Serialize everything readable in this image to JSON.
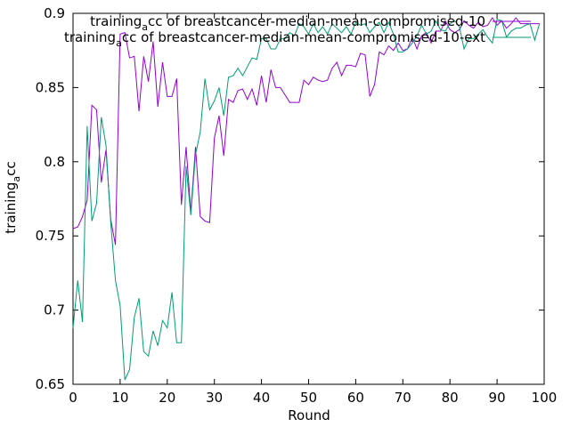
{
  "chart_data": {
    "type": "line",
    "xlabel": "Round",
    "ylabel": {
      "main": "training",
      "sub": "a",
      "rest": "cc"
    },
    "xlim": [
      0,
      100
    ],
    "ylim": [
      0.65,
      0.9
    ],
    "x_ticks": [
      "0",
      "10",
      "20",
      "30",
      "40",
      "50",
      "60",
      "70",
      "80",
      "90",
      "100"
    ],
    "y_ticks": [
      "0.65",
      "0.7",
      "0.75",
      "0.8",
      "0.85",
      "0.9"
    ],
    "grid": false,
    "legend_position": "top-right",
    "series": [
      {
        "name": {
          "main": "training",
          "sub": "a",
          "rest": "cc of breastcancer-median-mean-compromised-10"
        },
        "color": "#9400d3",
        "x": [
          0,
          1,
          2,
          3,
          4,
          5,
          6,
          7,
          8,
          9,
          10,
          11,
          12,
          13,
          14,
          15,
          16,
          17,
          18,
          19,
          20,
          21,
          22,
          23,
          24,
          25,
          26,
          27,
          28,
          29,
          30,
          31,
          32,
          33,
          34,
          35,
          36,
          37,
          38,
          39,
          40,
          41,
          42,
          43,
          44,
          45,
          46,
          47,
          48,
          49,
          50,
          51,
          52,
          53,
          54,
          55,
          56,
          57,
          58,
          59,
          60,
          61,
          62,
          63,
          64,
          65,
          66,
          67,
          68,
          69,
          70,
          71,
          72,
          73,
          74,
          75,
          76,
          77,
          78,
          79,
          80,
          81,
          82,
          83,
          84,
          85,
          86,
          87,
          88,
          89,
          90,
          91,
          92,
          93,
          94,
          95,
          96,
          97,
          98,
          99
        ],
        "values": [
          0.755,
          0.756,
          0.763,
          0.774,
          0.838,
          0.835,
          0.786,
          0.808,
          0.761,
          0.744,
          0.886,
          0.887,
          0.87,
          0.871,
          0.834,
          0.871,
          0.854,
          0.881,
          0.837,
          0.867,
          0.844,
          0.844,
          0.856,
          0.771,
          0.81,
          0.766,
          0.81,
          0.763,
          0.76,
          0.759,
          0.816,
          0.831,
          0.804,
          0.842,
          0.84,
          0.848,
          0.849,
          0.842,
          0.849,
          0.838,
          0.858,
          0.84,
          0.862,
          0.85,
          0.85,
          0.845,
          0.84,
          0.84,
          0.84,
          0.855,
          0.852,
          0.857,
          0.855,
          0.854,
          0.855,
          0.863,
          0.867,
          0.858,
          0.865,
          0.865,
          0.864,
          0.873,
          0.872,
          0.844,
          0.852,
          0.874,
          0.872,
          0.878,
          0.875,
          0.88,
          0.875,
          0.876,
          0.884,
          0.876,
          0.885,
          0.887,
          0.88,
          0.888,
          0.888,
          0.895,
          0.889,
          0.887,
          0.889,
          0.895,
          0.892,
          0.89,
          0.894,
          0.891,
          0.892,
          0.897,
          0.892,
          0.895,
          0.89,
          0.893,
          0.897,
          0.893,
          0.893,
          0.893,
          0.893,
          0.893
        ]
      },
      {
        "name": {
          "main": "training",
          "sub": "a",
          "rest": "cc of breastcancer-median-mean-compromised-10-ext"
        },
        "color": "#009e73",
        "x": [
          0,
          1,
          2,
          3,
          4,
          5,
          6,
          7,
          8,
          9,
          10,
          11,
          12,
          13,
          14,
          15,
          16,
          17,
          18,
          19,
          20,
          21,
          22,
          23,
          24,
          25,
          26,
          27,
          28,
          29,
          30,
          31,
          32,
          33,
          34,
          35,
          36,
          37,
          38,
          39,
          40,
          41,
          42,
          43,
          44,
          45,
          46,
          47,
          48,
          49,
          50,
          51,
          52,
          53,
          54,
          55,
          56,
          57,
          58,
          59,
          60,
          61,
          62,
          63,
          64,
          65,
          66,
          67,
          68,
          69,
          70,
          71,
          72,
          73,
          74,
          75,
          76,
          77,
          78,
          79,
          80,
          81,
          82,
          83,
          84,
          85,
          86,
          87,
          88,
          89,
          90,
          91,
          92,
          93,
          94,
          95,
          96,
          97,
          98,
          99
        ],
        "values": [
          0.688,
          0.72,
          0.692,
          0.824,
          0.76,
          0.772,
          0.83,
          0.811,
          0.759,
          0.72,
          0.703,
          0.653,
          0.66,
          0.695,
          0.708,
          0.672,
          0.669,
          0.686,
          0.676,
          0.693,
          0.688,
          0.712,
          0.678,
          0.678,
          0.797,
          0.764,
          0.805,
          0.82,
          0.856,
          0.835,
          0.841,
          0.85,
          0.831,
          0.857,
          0.858,
          0.863,
          0.858,
          0.864,
          0.87,
          0.869,
          0.883,
          0.883,
          0.876,
          0.876,
          0.883,
          0.883,
          0.887,
          0.885,
          0.893,
          0.891,
          0.886,
          0.893,
          0.887,
          0.891,
          0.886,
          0.893,
          0.89,
          0.887,
          0.891,
          0.886,
          0.894,
          0.892,
          0.893,
          0.887,
          0.891,
          0.894,
          0.887,
          0.894,
          0.886,
          0.874,
          0.874,
          0.876,
          0.88,
          0.885,
          0.892,
          0.886,
          0.888,
          0.895,
          0.889,
          0.888,
          0.893,
          0.895,
          0.891,
          0.876,
          0.883,
          0.883,
          0.886,
          0.889,
          0.884,
          0.88,
          0.896,
          0.895,
          0.884,
          0.888,
          0.89,
          0.89,
          0.892,
          0.893,
          0.882,
          0.893
        ]
      }
    ]
  }
}
